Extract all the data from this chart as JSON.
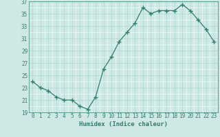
{
  "x": [
    0,
    1,
    2,
    3,
    4,
    5,
    6,
    7,
    8,
    9,
    10,
    11,
    12,
    13,
    14,
    15,
    16,
    17,
    18,
    19,
    20,
    21,
    22,
    23
  ],
  "y": [
    24.0,
    23.0,
    22.5,
    21.5,
    21.0,
    21.0,
    20.0,
    19.5,
    21.5,
    26.0,
    28.0,
    30.5,
    32.0,
    33.5,
    36.0,
    35.0,
    35.5,
    35.5,
    35.5,
    36.5,
    35.5,
    34.0,
    32.5,
    30.5
  ],
  "line_color": "#2e7d6e",
  "marker": "+",
  "marker_size": 4.0,
  "marker_lw": 1.0,
  "bg_color": "#cde8e5",
  "grid_major_color": "#b0d4d0",
  "grid_minor_color": "#ffffff",
  "xlabel": "Humidex (Indice chaleur)",
  "ylim": [
    19,
    37
  ],
  "xlim": [
    -0.5,
    23.5
  ],
  "yticks": [
    19,
    21,
    23,
    25,
    27,
    29,
    31,
    33,
    35,
    37
  ],
  "xticks": [
    0,
    1,
    2,
    3,
    4,
    5,
    6,
    7,
    8,
    9,
    10,
    11,
    12,
    13,
    14,
    15,
    16,
    17,
    18,
    19,
    20,
    21,
    22,
    23
  ],
  "tick_fontsize": 5.5,
  "xlabel_fontsize": 6.5,
  "linewidth": 0.9
}
